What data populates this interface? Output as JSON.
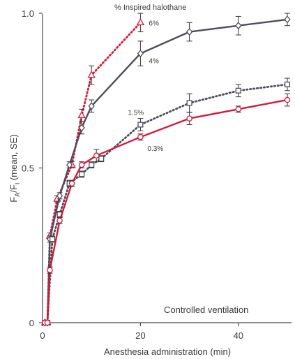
{
  "chart_data": {
    "type": "line",
    "title": "",
    "legend_title": "% Inspired halothane",
    "xlabel": "Anesthesia administration (min)",
    "ylabel": "FA/FI (mean, SE)",
    "ylabel_parts": {
      "f1": "F",
      "sub1": "A",
      "slash": "/F",
      "sub2": "I",
      "rest": " (mean, SE)"
    },
    "xlim": [
      0,
      50
    ],
    "ylim": [
      0,
      1.0
    ],
    "xticks": [
      "0",
      "20",
      "40"
    ],
    "xtick_values": [
      0,
      20,
      40
    ],
    "yticks": [
      "0",
      "0.5",
      "1.0"
    ],
    "ytick_values": [
      0,
      0.5,
      1.0
    ],
    "annotation": "Controlled ventilation",
    "series": [
      {
        "name": "6%",
        "marker": "triangle",
        "style": "dotted",
        "color": "#d8183a",
        "points": [
          [
            0.5,
            0.0
          ],
          [
            1,
            0.0
          ],
          [
            1.5,
            0.28
          ],
          [
            3,
            0.4
          ],
          [
            6,
            0.51
          ],
          [
            8,
            0.67
          ],
          [
            10,
            0.8
          ],
          [
            20,
            0.97
          ]
        ],
        "err": [
          0,
          0,
          0.01,
          0.01,
          0.01,
          0.02,
          0.03,
          0.03
        ]
      },
      {
        "name": "4%",
        "marker": "diamond",
        "style": "solid",
        "color": "#4a4e5a",
        "points": [
          [
            0.5,
            0.0
          ],
          [
            1,
            0.0
          ],
          [
            1.5,
            0.27
          ],
          [
            3.5,
            0.41
          ],
          [
            5.5,
            0.51
          ],
          [
            8,
            0.63
          ],
          [
            10,
            0.7
          ],
          [
            20,
            0.87
          ],
          [
            30,
            0.94
          ],
          [
            40,
            0.96
          ],
          [
            50,
            0.98
          ]
        ],
        "err": [
          0,
          0,
          0.01,
          0.01,
          0.01,
          0.02,
          0.02,
          0.04,
          0.03,
          0.03,
          0.02
        ]
      },
      {
        "name": "1.5%",
        "marker": "square",
        "style": "dotted",
        "color": "#4a4e5a",
        "points": [
          [
            0.5,
            0.0
          ],
          [
            1,
            0.0
          ],
          [
            2,
            0.27
          ],
          [
            3.5,
            0.35
          ],
          [
            5.5,
            0.45
          ],
          [
            8,
            0.48
          ],
          [
            10,
            0.51
          ],
          [
            12,
            0.53
          ],
          [
            20,
            0.64
          ],
          [
            30,
            0.71
          ],
          [
            40,
            0.75
          ],
          [
            50,
            0.77
          ]
        ],
        "err": [
          0,
          0,
          0.01,
          0.01,
          0.01,
          0.01,
          0.01,
          0.01,
          0.02,
          0.03,
          0.02,
          0.02
        ]
      },
      {
        "name": "0.3%",
        "marker": "circle",
        "style": "solid",
        "color": "#d8183a",
        "points": [
          [
            0.5,
            0.0
          ],
          [
            1,
            0.0
          ],
          [
            1.5,
            0.17
          ],
          [
            3.5,
            0.33
          ],
          [
            6,
            0.45
          ],
          [
            8,
            0.51
          ],
          [
            11,
            0.54
          ],
          [
            20,
            0.6
          ],
          [
            30,
            0.66
          ],
          [
            40,
            0.69
          ],
          [
            50,
            0.72
          ]
        ],
        "err": [
          0,
          0,
          0.01,
          0.01,
          0.01,
          0.01,
          0.02,
          0.01,
          0.02,
          0.01,
          0.02
        ]
      }
    ]
  }
}
